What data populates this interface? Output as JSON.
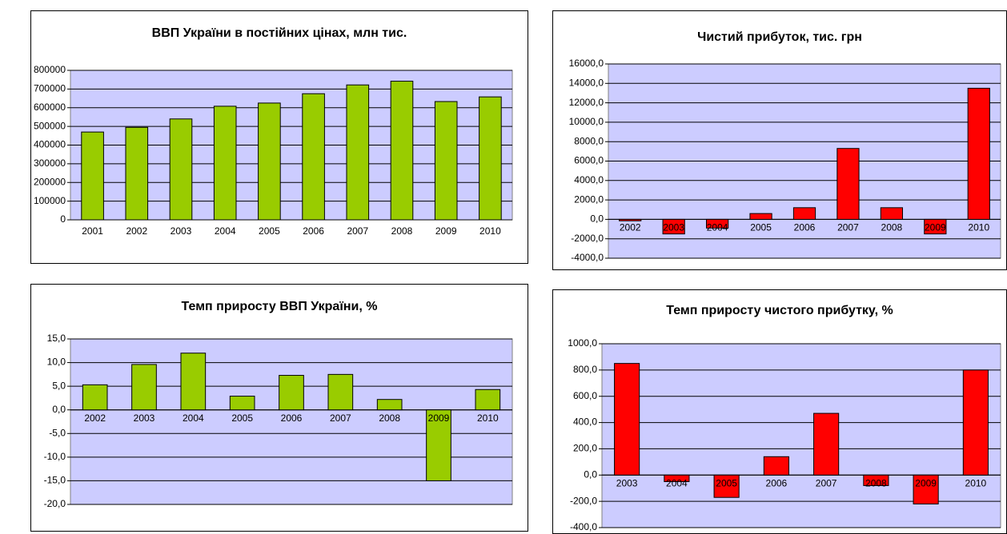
{
  "chart_data": [
    {
      "type": "bar",
      "title": "ВВП України в постійних цінах, млн тис.",
      "categories": [
        "2001",
        "2002",
        "2003",
        "2004",
        "2005",
        "2006",
        "2007",
        "2008",
        "2009",
        "2010"
      ],
      "values": [
        470000,
        495000,
        540000,
        608000,
        625000,
        675000,
        722000,
        742000,
        633000,
        658000
      ],
      "color": "#99cc00",
      "ylim": [
        0,
        800000
      ],
      "yticks": [
        0,
        100000,
        200000,
        300000,
        400000,
        500000,
        600000,
        700000,
        800000
      ],
      "grid": true
    },
    {
      "type": "bar",
      "title": "Чистий прибуток, тис. грн",
      "categories": [
        "2002",
        "2003",
        "2004",
        "2005",
        "2006",
        "2007",
        "2008",
        "2009",
        "2010"
      ],
      "values": [
        -150,
        -1500,
        -900,
        600,
        1200,
        7300,
        1200,
        -1500,
        13500
      ],
      "color": "#ff0000",
      "ylim": [
        -4000,
        16000
      ],
      "yticks": [
        {
          "value": -4000,
          "label": "-4000,0"
        },
        {
          "value": -2000,
          "label": "-2000,0"
        },
        {
          "value": 0,
          "label": "0,0"
        },
        {
          "value": 2000,
          "label": "2000,0"
        },
        {
          "value": 4000,
          "label": "4000,0"
        },
        {
          "value": 6000,
          "label": "6000,0"
        },
        {
          "value": 8000,
          "label": "8000,0"
        },
        {
          "value": 10000,
          "label": "10000,0"
        },
        {
          "value": 12000,
          "label": "12000,0"
        },
        {
          "value": 14000,
          "label": "14000,0"
        },
        {
          "value": 16000,
          "label": "16000,0"
        }
      ],
      "grid": true
    },
    {
      "type": "bar",
      "title": "Темп приросту ВВП України, %",
      "categories": [
        "2002",
        "2003",
        "2004",
        "2005",
        "2006",
        "2007",
        "2008",
        "2009",
        "2010"
      ],
      "values": [
        5.3,
        9.6,
        12.0,
        2.9,
        7.3,
        7.5,
        2.2,
        -15.0,
        4.3
      ],
      "color": "#99cc00",
      "ylim": [
        -20,
        15
      ],
      "yticks": [
        {
          "value": -20,
          "label": "-20,0"
        },
        {
          "value": -15,
          "label": "-15,0"
        },
        {
          "value": -10,
          "label": "-10,0"
        },
        {
          "value": -5,
          "label": "-5,0"
        },
        {
          "value": 0,
          "label": "0,0"
        },
        {
          "value": 5,
          "label": "5,0"
        },
        {
          "value": 10,
          "label": "10,0"
        },
        {
          "value": 15,
          "label": "15,0"
        }
      ],
      "grid": true
    },
    {
      "type": "bar",
      "title": "Темп приросту чистого прибутку, %",
      "categories": [
        "2003",
        "2004",
        "2005",
        "2006",
        "2007",
        "2008",
        "2009",
        "2010"
      ],
      "values": [
        850,
        -50,
        -170,
        140,
        470,
        -80,
        -220,
        800
      ],
      "color": "#ff0000",
      "ylim": [
        -400,
        1000
      ],
      "yticks": [
        {
          "value": -400,
          "label": "-400,0"
        },
        {
          "value": -200,
          "label": "-200,0"
        },
        {
          "value": 0,
          "label": "0,0"
        },
        {
          "value": 200,
          "label": "200,0"
        },
        {
          "value": 400,
          "label": "400,0"
        },
        {
          "value": 600,
          "label": "600,0"
        },
        {
          "value": 800,
          "label": "800,0"
        },
        {
          "value": 1000,
          "label": "1000,0"
        }
      ],
      "grid": true
    }
  ]
}
